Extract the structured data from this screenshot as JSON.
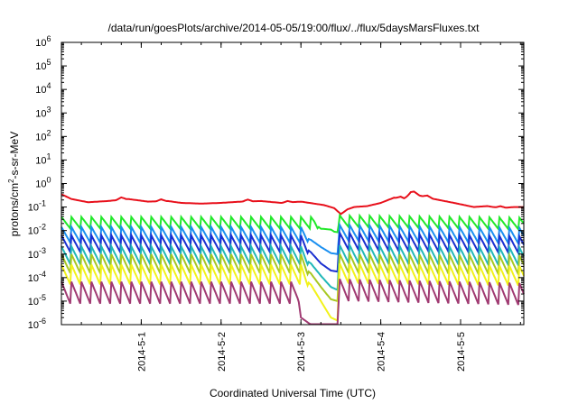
{
  "chart_data": {
    "type": "line",
    "title": "/data/run/goesPlots/archive/2014-05-05/19:00/flux/../flux/5daysMarsFluxes.txt",
    "xlabel": "Coordinated Universal Time (UTC)",
    "ylabel": {
      "prefix": "protons/cm",
      "sup": "2",
      "suffix": "-s-sr-MeV"
    },
    "y_scale": "log",
    "ylim": [
      1e-06,
      1000000.0
    ],
    "xlim": [
      "2014-04-30 00:00",
      "2014-05-05 19:00"
    ],
    "y_ticks": [
      {
        "value": 1e-06,
        "base": "10",
        "exp": "-6"
      },
      {
        "value": 1e-05,
        "base": "10",
        "exp": "-5"
      },
      {
        "value": 0.0001,
        "base": "10",
        "exp": "-4"
      },
      {
        "value": 0.001,
        "base": "10",
        "exp": "-3"
      },
      {
        "value": 0.01,
        "base": "10",
        "exp": "-2"
      },
      {
        "value": 0.1,
        "base": "10",
        "exp": "-1"
      },
      {
        "value": 1.0,
        "base": "10",
        "exp": "0"
      },
      {
        "value": 10.0,
        "base": "10",
        "exp": "1"
      },
      {
        "value": 100.0,
        "base": "10",
        "exp": "2"
      },
      {
        "value": 1000.0,
        "base": "10",
        "exp": "3"
      },
      {
        "value": 10000.0,
        "base": "10",
        "exp": "4"
      },
      {
        "value": 100000.0,
        "base": "10",
        "exp": "5"
      },
      {
        "value": 1000000.0,
        "base": "10",
        "exp": "6"
      }
    ],
    "x_ticks": [
      {
        "value": "2014-05-01 00:00",
        "label": "2014-5-1"
      },
      {
        "value": "2014-05-02 00:00",
        "label": "2014-5-2"
      },
      {
        "value": "2014-05-03 00:00",
        "label": "2014-5-3"
      },
      {
        "value": "2014-05-04 00:00",
        "label": "2014-5-4"
      },
      {
        "value": "2014-05-05 00:00",
        "label": "2014-5-5"
      }
    ],
    "grid": false,
    "legend": "none",
    "sawtooth_period_hours": 3,
    "series": [
      {
        "color": "#e8101b",
        "sawtooth_amplitude": 0,
        "points": [
          [
            "2014-04-30 00:00",
            0.35
          ],
          [
            "2014-04-30 03:00",
            0.22
          ],
          [
            "2014-04-30 08:00",
            0.16
          ],
          [
            "2014-04-30 14:00",
            0.18
          ],
          [
            "2014-04-30 20:00",
            0.22
          ],
          [
            "2014-05-01 02:00",
            0.17
          ],
          [
            "2014-05-01 08:00",
            0.18
          ],
          [
            "2014-05-01 12:00",
            0.15
          ],
          [
            "2014-05-01 18:00",
            0.14
          ],
          [
            "2014-05-02 00:00",
            0.15
          ],
          [
            "2014-05-02 06:00",
            0.17
          ],
          [
            "2014-05-02 12:00",
            0.18
          ],
          [
            "2014-05-02 18:00",
            0.15
          ],
          [
            "2014-05-03 00:00",
            0.17
          ],
          [
            "2014-05-03 04:00",
            0.14
          ],
          [
            "2014-05-03 07:00",
            0.12
          ],
          [
            "2014-05-03 10:00",
            0.09
          ],
          [
            "2014-05-03 12:00",
            0.05
          ],
          [
            "2014-05-03 14:00",
            0.08
          ],
          [
            "2014-05-03 16:00",
            0.1
          ],
          [
            "2014-05-03 20:00",
            0.11
          ],
          [
            "2014-05-04 00:00",
            0.15
          ],
          [
            "2014-05-04 04:00",
            0.25
          ],
          [
            "2014-05-04 07:00",
            0.22
          ],
          [
            "2014-05-04 09:00",
            0.4
          ],
          [
            "2014-05-04 12:00",
            0.3
          ],
          [
            "2014-05-04 16:00",
            0.22
          ],
          [
            "2014-05-04 22:00",
            0.15
          ],
          [
            "2014-05-05 04:00",
            0.1
          ],
          [
            "2014-05-05 08:00",
            0.11
          ],
          [
            "2014-05-05 12:00",
            0.09
          ],
          [
            "2014-05-05 16:00",
            0.1
          ],
          [
            "2014-05-05 19:00",
            0.1
          ]
        ],
        "spikes": [
          {
            "time": "2014-04-30 18:00",
            "factor": 1.25
          },
          {
            "time": "2014-05-01 06:00",
            "factor": 1.2
          },
          {
            "time": "2014-05-02 08:00",
            "factor": 1.2
          },
          {
            "time": "2014-05-02 20:00",
            "factor": 1.15
          },
          {
            "time": "2014-05-04 06:00",
            "factor": 1.2
          },
          {
            "time": "2014-05-04 10:00",
            "factor": 1.25
          },
          {
            "time": "2014-05-04 14:00",
            "factor": 1.2
          },
          {
            "time": "2014-05-05 12:00",
            "factor": 1.2
          }
        ]
      },
      {
        "color": "#22e82a",
        "sawtooth_amplitude": 0.55,
        "points": [
          [
            "2014-04-30 00:00",
            0.02
          ],
          [
            "2014-05-03 04:00",
            0.02
          ],
          [
            "2014-05-03 06:00",
            0.012
          ],
          [
            "2014-05-03 09:00",
            0.011
          ],
          [
            "2014-05-03 10:00",
            0.009
          ],
          [
            "2014-05-03 11:00",
            0.0085
          ],
          [
            "2014-05-03 11:30",
            0.025
          ],
          [
            "2014-05-05 19:00",
            0.02
          ]
        ],
        "sawtooth_until": "2014-05-03 05:00",
        "sawtooth_resume": "2014-05-03 11:30"
      },
      {
        "color": "#1a8ff0",
        "sawtooth_amplitude": 0.75,
        "points": [
          [
            "2014-04-30 00:00",
            0.006
          ],
          [
            "2014-05-03 00:00",
            0.006
          ],
          [
            "2014-05-03 03:00",
            0.004
          ],
          [
            "2014-05-03 06:00",
            0.002
          ],
          [
            "2014-05-03 09:00",
            0.0011
          ],
          [
            "2014-05-03 11:00",
            0.001
          ],
          [
            "2014-05-03 11:30",
            0.008
          ],
          [
            "2014-05-05 19:00",
            0.006
          ]
        ],
        "sawtooth_until": "2014-05-03 02:00",
        "sawtooth_resume": "2014-05-03 11:30"
      },
      {
        "color": "#1a2fd0",
        "sawtooth_amplitude": 0.8,
        "points": [
          [
            "2014-04-30 00:00",
            0.0025
          ],
          [
            "2014-05-03 00:00",
            0.0025
          ],
          [
            "2014-05-03 03:00",
            0.0012
          ],
          [
            "2014-05-03 06:00",
            0.0004
          ],
          [
            "2014-05-03 09:00",
            0.0002
          ],
          [
            "2014-05-03 11:00",
            0.00018
          ],
          [
            "2014-05-03 11:30",
            0.0035
          ],
          [
            "2014-05-05 19:00",
            0.0025
          ]
        ],
        "sawtooth_until": "2014-05-03 02:00",
        "sawtooth_resume": "2014-05-03 11:30"
      },
      {
        "color": "#21b8b8",
        "sawtooth_amplitude": 0.85,
        "points": [
          [
            "2014-04-30 00:00",
            0.0008
          ],
          [
            "2014-05-03 00:00",
            0.0008
          ],
          [
            "2014-05-03 03:00",
            0.0004
          ],
          [
            "2014-05-03 06:00",
            0.00012
          ],
          [
            "2014-05-03 09:00",
            4e-05
          ],
          [
            "2014-05-03 11:00",
            3e-05
          ],
          [
            "2014-05-03 11:30",
            0.001
          ],
          [
            "2014-05-05 19:00",
            0.0008
          ]
        ],
        "sawtooth_until": "2014-05-03 02:00",
        "sawtooth_resume": "2014-05-03 11:30"
      },
      {
        "color": "#a8c822",
        "sawtooth_amplitude": 0.9,
        "points": [
          [
            "2014-04-30 00:00",
            0.00035
          ],
          [
            "2014-05-03 00:00",
            0.00035
          ],
          [
            "2014-05-03 03:00",
            0.00015
          ],
          [
            "2014-05-03 06:00",
            4e-05
          ],
          [
            "2014-05-03 09:00",
            1.2e-05
          ],
          [
            "2014-05-03 11:00",
            1e-05
          ],
          [
            "2014-05-03 11:30",
            0.0004
          ],
          [
            "2014-05-05 19:00",
            0.00035
          ]
        ],
        "sawtooth_until": "2014-05-03 02:00",
        "sawtooth_resume": "2014-05-03 11:30"
      },
      {
        "color": "#f2f21a",
        "sawtooth_amplitude": 0.95,
        "points": [
          [
            "2014-04-30 00:00",
            0.00012
          ],
          [
            "2014-05-03 00:00",
            0.00012
          ],
          [
            "2014-05-03 03:00",
            5e-05
          ],
          [
            "2014-05-03 06:00",
            1e-05
          ],
          [
            "2014-05-03 09:00",
            2e-06
          ],
          [
            "2014-05-03 11:00",
            1.5e-06
          ],
          [
            "2014-05-03 11:30",
            0.00015
          ],
          [
            "2014-05-05 19:00",
            0.00012
          ]
        ],
        "sawtooth_until": "2014-05-03 02:00",
        "sawtooth_resume": "2014-05-03 11:30"
      },
      {
        "color": "#a03a72",
        "sawtooth_amplitude": 1.05,
        "points": [
          [
            "2014-04-30 00:00",
            2e-05
          ],
          [
            "2014-05-02 23:00",
            2e-05
          ],
          [
            "2014-05-03 00:00",
            2e-06
          ],
          [
            "2014-05-03 03:00",
            1e-06
          ],
          [
            "2014-05-03 11:00",
            1e-06
          ],
          [
            "2014-05-03 11:30",
            3e-05
          ],
          [
            "2014-05-05 19:00",
            2e-05
          ]
        ],
        "sawtooth_until": "2014-05-02 23:00",
        "sawtooth_resume": "2014-05-03 11:30"
      }
    ]
  }
}
